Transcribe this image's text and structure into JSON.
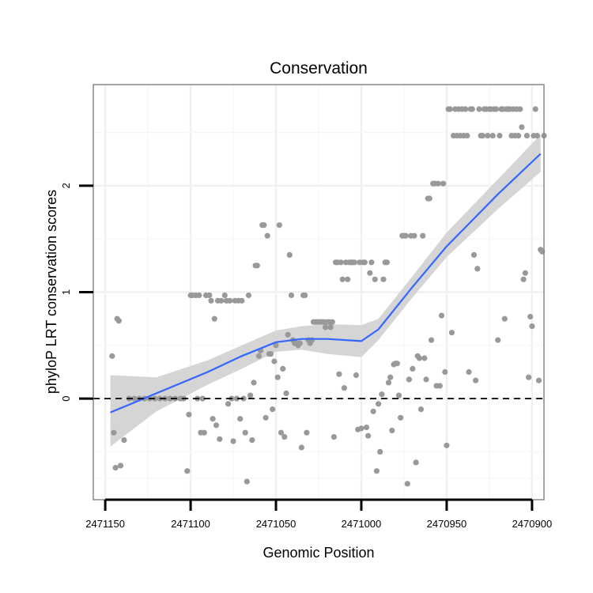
{
  "chart_data": {
    "type": "scatter",
    "title": "Conservation",
    "xlabel": "Genomic Position",
    "ylabel": "phyloP LRT conservation scores",
    "x_reversed": true,
    "xlim": [
      2471157,
      2470893
    ],
    "ylim": [
      -0.95,
      2.95
    ],
    "x_ticks": [
      2471150,
      2471100,
      2471050,
      2471000,
      2470950,
      2470900
    ],
    "x_tick_labels": [
      "2471150",
      "2471100",
      "2471050",
      "2471000",
      "2470950",
      "2470900"
    ],
    "y_ticks": [
      0,
      1,
      2
    ],
    "y_tick_labels": [
      "0",
      "1",
      "2"
    ],
    "reference_line": {
      "y": 0,
      "style": "dashed"
    },
    "points": [
      [
        2471146,
        0.4
      ],
      [
        2471145,
        -0.32
      ],
      [
        2471144,
        -0.65
      ],
      [
        2471143,
        0.75
      ],
      [
        2471142,
        0.73
      ],
      [
        2471141,
        -0.63
      ],
      [
        2471139,
        -0.39
      ],
      [
        2471136,
        0
      ],
      [
        2471133,
        0
      ],
      [
        2471130,
        0
      ],
      [
        2471127,
        0
      ],
      [
        2471124,
        0
      ],
      [
        2471121,
        0
      ],
      [
        2471118,
        0
      ],
      [
        2471115,
        0
      ],
      [
        2471112,
        0
      ],
      [
        2471109,
        0
      ],
      [
        2471106,
        0
      ],
      [
        2471104,
        0
      ],
      [
        2471102,
        -0.68
      ],
      [
        2471101,
        -0.15
      ],
      [
        2471100,
        0.97
      ],
      [
        2471099,
        0.97
      ],
      [
        2471097,
        0.97
      ],
      [
        2471096,
        0
      ],
      [
        2471095,
        0.97
      ],
      [
        2471094,
        -0.32
      ],
      [
        2471093,
        0
      ],
      [
        2471092,
        -0.32
      ],
      [
        2471091,
        0.97
      ],
      [
        2471089,
        0.97
      ],
      [
        2471088,
        0.92
      ],
      [
        2471087,
        -0.19
      ],
      [
        2471086,
        0.75
      ],
      [
        2471085,
        -0.25
      ],
      [
        2471084,
        0.92
      ],
      [
        2471083,
        -0.38
      ],
      [
        2471082,
        0.92
      ],
      [
        2471080,
        0.97
      ],
      [
        2471079,
        0.92
      ],
      [
        2471078,
        -0.05
      ],
      [
        2471077,
        0.92
      ],
      [
        2471076,
        0
      ],
      [
        2471075,
        -0.4
      ],
      [
        2471074,
        0.92
      ],
      [
        2471073,
        0
      ],
      [
        2471072,
        0.92
      ],
      [
        2471071,
        -0.19
      ],
      [
        2471070,
        0.92
      ],
      [
        2471069,
        0
      ],
      [
        2471068,
        -0.32
      ],
      [
        2471067,
        -0.78
      ],
      [
        2471066,
        0.97
      ],
      [
        2471065,
        0.03
      ],
      [
        2471064,
        -0.39
      ],
      [
        2471063,
        0.15
      ],
      [
        2471062,
        1.25
      ],
      [
        2471061,
        1.25
      ],
      [
        2471060,
        0.4
      ],
      [
        2471059,
        0.45
      ],
      [
        2471058,
        1.63
      ],
      [
        2471057,
        1.63
      ],
      [
        2471056,
        -0.18
      ],
      [
        2471055,
        1.53
      ],
      [
        2471054,
        0.42
      ],
      [
        2471053,
        0.42
      ],
      [
        2471052,
        -0.1
      ],
      [
        2471051,
        0.35
      ],
      [
        2471050,
        0.5
      ],
      [
        2471049,
        0.2
      ],
      [
        2471048,
        1.63
      ],
      [
        2471047,
        -0.32
      ],
      [
        2471046,
        0.28
      ],
      [
        2471045,
        -0.36
      ],
      [
        2471044,
        0.05
      ],
      [
        2471043,
        0.6
      ],
      [
        2471042,
        1.35
      ],
      [
        2471041,
        0.97
      ],
      [
        2471040,
        0.55
      ],
      [
        2471039,
        0.52
      ],
      [
        2471038,
        0.52
      ],
      [
        2471037,
        0.5
      ],
      [
        2471036,
        0.52
      ],
      [
        2471035,
        -0.46
      ],
      [
        2471034,
        0.97
      ],
      [
        2471033,
        0.97
      ],
      [
        2471032,
        -0.32
      ],
      [
        2471031,
        0.55
      ],
      [
        2471030,
        0.52
      ],
      [
        2471029,
        0.55
      ],
      [
        2471028,
        0.72
      ],
      [
        2471027,
        0.72
      ],
      [
        2471026,
        0.72
      ],
      [
        2471025,
        0.72
      ],
      [
        2471024,
        0.72
      ],
      [
        2471023,
        0.72
      ],
      [
        2471022,
        0.72
      ],
      [
        2471021,
        0.67
      ],
      [
        2471020,
        0.72
      ],
      [
        2471019,
        0.72
      ],
      [
        2471018,
        0.67
      ],
      [
        2471017,
        0.72
      ],
      [
        2471016,
        -0.36
      ],
      [
        2471015,
        1.28
      ],
      [
        2471014,
        1.28
      ],
      [
        2471013,
        0.23
      ],
      [
        2471012,
        1.28
      ],
      [
        2471011,
        1.12
      ],
      [
        2471010,
        0.1
      ],
      [
        2471009,
        1.28
      ],
      [
        2471008,
        1.12
      ],
      [
        2471007,
        1.28
      ],
      [
        2471006,
        1.28
      ],
      [
        2471005,
        1.28
      ],
      [
        2471004,
        1.28
      ],
      [
        2471003,
        0.22
      ],
      [
        2471002,
        -0.29
      ],
      [
        2471001,
        1.28
      ],
      [
        2471000,
        -0.28
      ],
      [
        2470999,
        1.28
      ],
      [
        2470998,
        1.28
      ],
      [
        2470997,
        -0.27
      ],
      [
        2470996,
        -0.35
      ],
      [
        2470995,
        1.18
      ],
      [
        2470994,
        1.28
      ],
      [
        2470993,
        -0.12
      ],
      [
        2470992,
        1.12
      ],
      [
        2470991,
        -0.68
      ],
      [
        2470990,
        -0.05
      ],
      [
        2470989,
        -0.5
      ],
      [
        2470988,
        0.04
      ],
      [
        2470987,
        1.12
      ],
      [
        2470986,
        1.28
      ],
      [
        2470985,
        1.28
      ],
      [
        2470984,
        0.15
      ],
      [
        2470983,
        0.2
      ],
      [
        2470982,
        -0.3
      ],
      [
        2470981,
        0.32
      ],
      [
        2470980,
        0.33
      ],
      [
        2470979,
        0.33
      ],
      [
        2470978,
        0.03
      ],
      [
        2470977,
        -0.18
      ],
      [
        2470976,
        1.53
      ],
      [
        2470975,
        1.53
      ],
      [
        2470974,
        1.53
      ],
      [
        2470973,
        -0.8
      ],
      [
        2470972,
        0.18
      ],
      [
        2470971,
        1.53
      ],
      [
        2470970,
        0.28
      ],
      [
        2470969,
        1.53
      ],
      [
        2470968,
        -0.6
      ],
      [
        2470967,
        0.4
      ],
      [
        2470966,
        0.38
      ],
      [
        2470965,
        -0.1
      ],
      [
        2470964,
        1.53
      ],
      [
        2470963,
        0.38
      ],
      [
        2470962,
        0.18
      ],
      [
        2470961,
        1.88
      ],
      [
        2470960,
        1.88
      ],
      [
        2470959,
        0.55
      ],
      [
        2470958,
        2.02
      ],
      [
        2470957,
        2.02
      ],
      [
        2470956,
        0.12
      ],
      [
        2470955,
        2.02
      ],
      [
        2470954,
        0.12
      ],
      [
        2470953,
        0.78
      ],
      [
        2470952,
        2.02
      ],
      [
        2470951,
        0.25
      ],
      [
        2470950,
        -0.44
      ],
      [
        2470949,
        2.72
      ],
      [
        2470948,
        2.72
      ],
      [
        2470947,
        0.62
      ],
      [
        2470946,
        2.47
      ],
      [
        2470945,
        2.72
      ],
      [
        2470944,
        2.47
      ],
      [
        2470943,
        2.72
      ],
      [
        2470942,
        2.47
      ],
      [
        2470941,
        2.72
      ],
      [
        2470940,
        2.47
      ],
      [
        2470939,
        2.72
      ],
      [
        2470938,
        2.47
      ],
      [
        2470937,
        0.25
      ],
      [
        2470936,
        2.72
      ],
      [
        2470935,
        2.72
      ],
      [
        2470934,
        1.35
      ],
      [
        2470933,
        0.17
      ],
      [
        2470932,
        1.22
      ],
      [
        2470931,
        2.72
      ],
      [
        2470930,
        2.47
      ],
      [
        2470929,
        2.47
      ],
      [
        2470928,
        2.72
      ],
      [
        2470927,
        2.72
      ],
      [
        2470926,
        2.47
      ],
      [
        2470925,
        2.72
      ],
      [
        2470924,
        2.72
      ],
      [
        2470923,
        2.47
      ],
      [
        2470922,
        2.72
      ],
      [
        2470921,
        2.72
      ],
      [
        2470920,
        0.55
      ],
      [
        2470919,
        2.47
      ],
      [
        2470918,
        2.72
      ],
      [
        2470917,
        2.72
      ],
      [
        2470916,
        0.75
      ],
      [
        2470915,
        2.72
      ],
      [
        2470914,
        2.72
      ],
      [
        2470913,
        2.72
      ],
      [
        2470912,
        2.47
      ],
      [
        2470911,
        2.72
      ],
      [
        2470910,
        2.47
      ],
      [
        2470909,
        2.72
      ],
      [
        2470908,
        2.47
      ],
      [
        2470907,
        2.72
      ],
      [
        2470906,
        2.55
      ],
      [
        2470905,
        1.12
      ],
      [
        2470904,
        1.18
      ],
      [
        2470903,
        2.47
      ],
      [
        2470902,
        0.2
      ],
      [
        2470901,
        0.77
      ],
      [
        2470900,
        0.68
      ],
      [
        2470899,
        2.47
      ],
      [
        2470898,
        2.72
      ],
      [
        2470897,
        2.47
      ],
      [
        2470896,
        0.17
      ],
      [
        2470895,
        1.4
      ],
      [
        2470894,
        1.38
      ],
      [
        2470893,
        2.47
      ]
    ],
    "smooth": {
      "method": "loess",
      "x": [
        2471147,
        2471120,
        2471090,
        2471070,
        2471050,
        2471035,
        2471020,
        2471000,
        2470990,
        2470970,
        2470950,
        2470920,
        2470895
      ],
      "y": [
        -0.13,
        0.05,
        0.25,
        0.4,
        0.53,
        0.56,
        0.56,
        0.54,
        0.65,
        1.05,
        1.43,
        1.92,
        2.3
      ],
      "lo": [
        -0.45,
        -0.12,
        0.13,
        0.28,
        0.44,
        0.46,
        0.42,
        0.39,
        0.55,
        0.95,
        1.33,
        1.78,
        2.13
      ],
      "hi": [
        0.22,
        0.2,
        0.36,
        0.5,
        0.64,
        0.68,
        0.7,
        0.69,
        0.75,
        1.15,
        1.56,
        2.06,
        2.48
      ]
    },
    "colors": {
      "points": "#999999",
      "smooth_line": "#3366ff",
      "ribbon": "#d3d3d3",
      "grid": "#f0f0f0",
      "border": "#888888"
    }
  }
}
